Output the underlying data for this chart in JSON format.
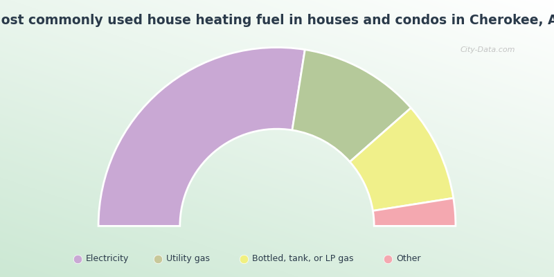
{
  "title": "Most commonly used house heating fuel in houses and condos in Cherokee, AL",
  "categories": [
    "Electricity",
    "Utility gas",
    "Bottled, tank, or LP gas",
    "Other"
  ],
  "values": [
    55,
    22,
    18,
    5
  ],
  "colors": [
    "#c9a8d4",
    "#b5c99a",
    "#f0f08a",
    "#f4a8b0"
  ],
  "legend_colors": [
    "#c9a8d4",
    "#c8c89a",
    "#f0f080",
    "#f4a8b0"
  ],
  "title_color": "#2a3a4a",
  "title_fontsize": 13.5,
  "watermark": "City-Data.com",
  "outer_r": 0.92,
  "inner_r": 0.5
}
